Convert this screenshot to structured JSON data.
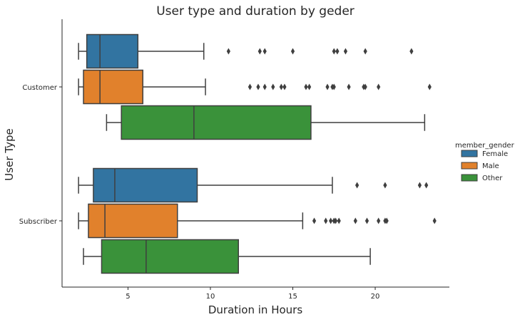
{
  "chart_data": {
    "type": "box",
    "orientation": "horizontal",
    "title": "User type and duration by geder",
    "xlabel": "Duration in Hours",
    "ylabel": "User Type",
    "xlim": [
      1.0,
      24.5
    ],
    "xticks": [
      5,
      10,
      15,
      20
    ],
    "categories": [
      "Customer",
      "Subscriber"
    ],
    "legend": {
      "title": "member_gender",
      "placement": "right",
      "entries": [
        "Female",
        "Male",
        "Other"
      ]
    },
    "colors": {
      "Female": "#3274a1",
      "Male": "#e1812c",
      "Other": "#3a923a",
      "line": "#3f3f3f",
      "axis": "#262626"
    },
    "grid": false,
    "series": [
      {
        "name": "Female",
        "boxes": [
          {
            "category": "Customer",
            "whisker_low": 2.0,
            "q1": 2.5,
            "median": 3.3,
            "q3": 5.6,
            "whisker_high": 9.6,
            "outliers": [
              11.1,
              13.0,
              13.3,
              15.0,
              17.5,
              17.7,
              18.2,
              19.4,
              22.2
            ]
          },
          {
            "category": "Subscriber",
            "whisker_low": 2.0,
            "q1": 2.9,
            "median": 4.2,
            "q3": 9.2,
            "whisker_high": 17.4,
            "outliers": [
              18.9,
              20.6,
              22.7,
              23.1
            ]
          }
        ]
      },
      {
        "name": "Male",
        "boxes": [
          {
            "category": "Customer",
            "whisker_low": 2.0,
            "q1": 2.3,
            "median": 3.3,
            "q3": 5.9,
            "whisker_high": 9.7,
            "outliers": [
              12.4,
              12.9,
              13.3,
              13.8,
              14.3,
              14.5,
              15.8,
              16.0,
              17.1,
              17.4,
              17.5,
              18.4,
              19.3,
              19.4,
              20.2,
              23.3
            ]
          },
          {
            "category": "Subscriber",
            "whisker_low": 2.0,
            "q1": 2.6,
            "median": 3.6,
            "q3": 8.0,
            "whisker_high": 15.6,
            "outliers": [
              16.3,
              17.0,
              17.3,
              17.5,
              17.6,
              17.8,
              18.8,
              19.5,
              20.2,
              20.6,
              20.7,
              23.6
            ]
          }
        ]
      },
      {
        "name": "Other",
        "boxes": [
          {
            "category": "Customer",
            "whisker_low": 3.7,
            "q1": 4.6,
            "median": 9.0,
            "q3": 16.1,
            "whisker_high": 23.0,
            "outliers": []
          },
          {
            "category": "Subscriber",
            "whisker_low": 2.3,
            "q1": 3.4,
            "median": 6.1,
            "q3": 11.7,
            "whisker_high": 19.7,
            "outliers": []
          }
        ]
      }
    ]
  }
}
